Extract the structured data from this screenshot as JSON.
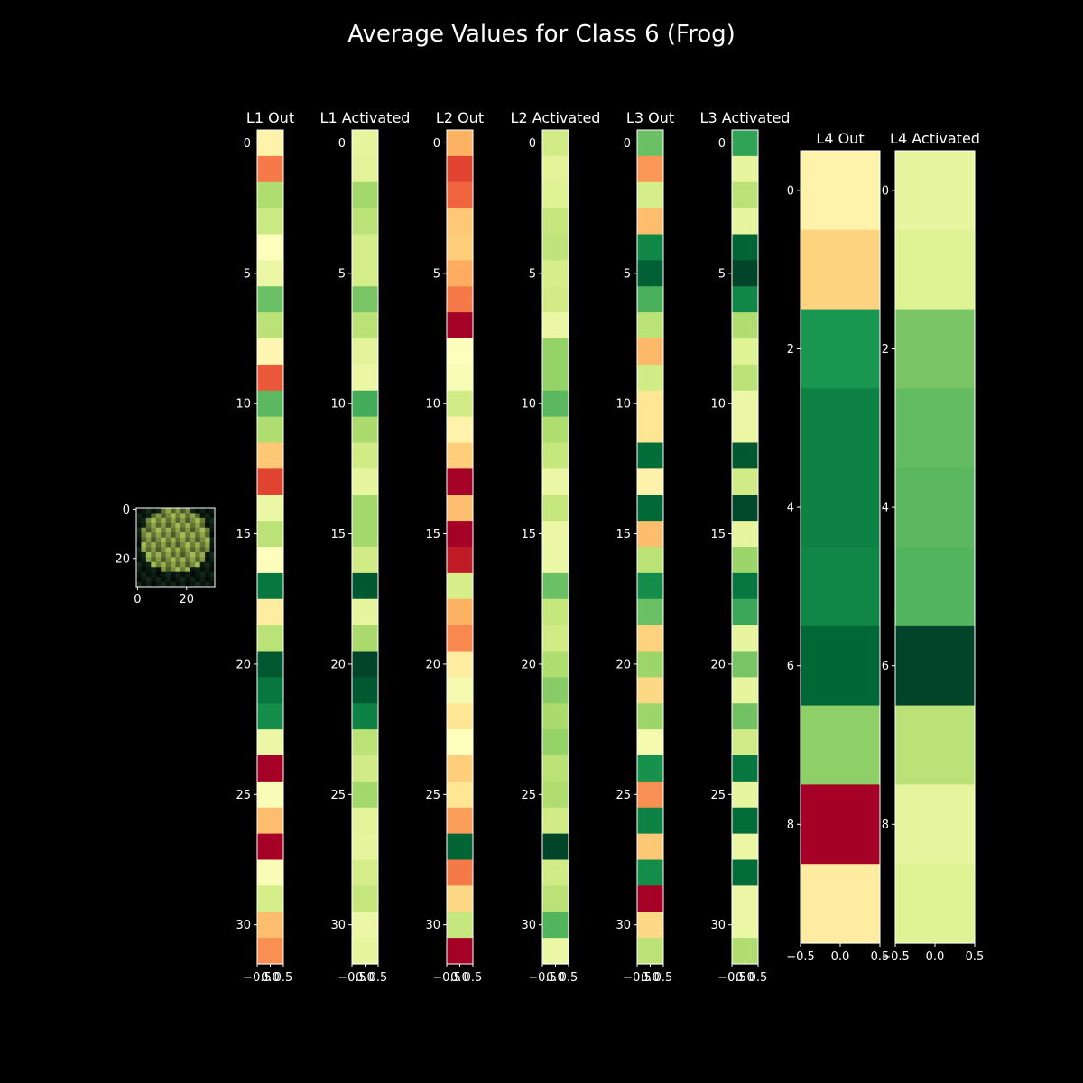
{
  "title": "Average Values for Class 6 (Frog)",
  "colors": {
    "background": "#000000",
    "foreground": "#ffffff",
    "colormap": [
      "#a50026",
      "#d73027",
      "#f46d43",
      "#fdae61",
      "#fee08b",
      "#ffffbf",
      "#d9ef8b",
      "#a6d96a",
      "#66bd63",
      "#1a9850",
      "#006837",
      "#004529"
    ]
  },
  "thumbnail": {
    "description_icon": "frog-image",
    "xticks": [
      "0",
      "20"
    ],
    "yticks": [
      "0",
      "20"
    ]
  },
  "chart_data": [
    {
      "type": "heatmap",
      "title": "L1 Out",
      "xticks": [
        "−0.5",
        "0.0",
        "0.5"
      ],
      "yticks": [
        "0",
        "5",
        "10",
        "15",
        "20",
        "25",
        "30"
      ],
      "values": [
        0.42,
        0.2,
        0.62,
        0.57,
        0.46,
        0.5,
        0.72,
        0.6,
        0.43,
        0.15,
        0.74,
        0.62,
        0.32,
        0.12,
        0.5,
        0.6,
        0.45,
        0.88,
        0.4,
        0.6,
        0.95,
        0.88,
        0.84,
        0.5,
        0.0,
        0.47,
        0.3,
        0.0,
        0.47,
        0.55,
        0.3,
        0.23
      ]
    },
    {
      "type": "heatmap",
      "title": "L1 Activated",
      "xticks": [
        "−0.5",
        "0.0",
        "0.5"
      ],
      "yticks": [
        "0",
        "5",
        "10",
        "15",
        "20",
        "25",
        "30"
      ],
      "values": [
        0.51,
        0.52,
        0.64,
        0.6,
        0.55,
        0.55,
        0.7,
        0.6,
        0.52,
        0.5,
        0.77,
        0.63,
        0.56,
        0.51,
        0.64,
        0.64,
        0.56,
        0.95,
        0.51,
        0.63,
        1.0,
        0.95,
        0.86,
        0.6,
        0.56,
        0.64,
        0.52,
        0.51,
        0.55,
        0.58,
        0.5,
        0.51
      ]
    },
    {
      "type": "heatmap",
      "title": "L2 Out",
      "xticks": [
        "−0.5",
        "0.0",
        "0.5"
      ],
      "yticks": [
        "0",
        "5",
        "10",
        "15",
        "20",
        "25",
        "30"
      ],
      "values": [
        0.28,
        0.12,
        0.17,
        0.32,
        0.33,
        0.27,
        0.2,
        0.0,
        0.46,
        0.47,
        0.56,
        0.42,
        0.33,
        0.0,
        0.3,
        0.0,
        0.05,
        0.55,
        0.28,
        0.22,
        0.4,
        0.48,
        0.38,
        0.46,
        0.33,
        0.38,
        0.25,
        0.92,
        0.2,
        0.35,
        0.58,
        0.0
      ]
    },
    {
      "type": "heatmap",
      "title": "L2 Activated",
      "xticks": [
        "−0.5",
        "0.0",
        "0.5"
      ],
      "yticks": [
        "0",
        "5",
        "10",
        "15",
        "20",
        "25",
        "30"
      ],
      "values": [
        0.56,
        0.52,
        0.53,
        0.58,
        0.59,
        0.55,
        0.56,
        0.5,
        0.66,
        0.66,
        0.74,
        0.62,
        0.58,
        0.5,
        0.58,
        0.5,
        0.5,
        0.72,
        0.58,
        0.56,
        0.62,
        0.68,
        0.63,
        0.66,
        0.6,
        0.62,
        0.56,
        1.0,
        0.56,
        0.6,
        0.75,
        0.5
      ]
    },
    {
      "type": "heatmap",
      "title": "L3 Out",
      "xticks": [
        "−0.5",
        "0.0",
        "0.5"
      ],
      "yticks": [
        "0",
        "5",
        "10",
        "15",
        "20",
        "25",
        "30"
      ],
      "values": [
        0.72,
        0.24,
        0.55,
        0.3,
        0.85,
        0.93,
        0.76,
        0.6,
        0.29,
        0.56,
        0.38,
        0.38,
        0.9,
        0.42,
        0.91,
        0.3,
        0.6,
        0.84,
        0.72,
        0.34,
        0.65,
        0.35,
        0.65,
        0.48,
        0.83,
        0.23,
        0.86,
        0.32,
        0.84,
        0.0,
        0.35,
        0.6
      ]
    },
    {
      "type": "heatmap",
      "title": "L3 Activated",
      "xticks": [
        "−0.5",
        "0.0",
        "0.5"
      ],
      "yticks": [
        "0",
        "5",
        "10",
        "15",
        "20",
        "25",
        "30"
      ],
      "values": [
        0.79,
        0.51,
        0.6,
        0.51,
        0.92,
        1.0,
        0.85,
        0.62,
        0.53,
        0.6,
        0.5,
        0.5,
        0.95,
        0.56,
        0.99,
        0.51,
        0.65,
        0.88,
        0.78,
        0.51,
        0.7,
        0.51,
        0.71,
        0.56,
        0.88,
        0.51,
        0.9,
        0.5,
        0.9,
        0.5,
        0.5,
        0.62
      ]
    },
    {
      "type": "heatmap",
      "title": "L4 Out",
      "xticks": [
        "−0.5",
        "0.0",
        "0.5"
      ],
      "yticks": [
        "0",
        "2",
        "4",
        "6",
        "8"
      ],
      "values": [
        0.42,
        0.34,
        0.82,
        0.86,
        0.86,
        0.85,
        0.91,
        0.67,
        0.0,
        0.4
      ]
    },
    {
      "type": "heatmap",
      "title": "L4 Activated",
      "xticks": [
        "−0.5",
        "0.0",
        "0.5"
      ],
      "yticks": [
        "0",
        "2",
        "4",
        "6",
        "8"
      ],
      "values": [
        0.51,
        0.53,
        0.7,
        0.73,
        0.74,
        0.75,
        1.0,
        0.6,
        0.51,
        0.53
      ]
    }
  ]
}
